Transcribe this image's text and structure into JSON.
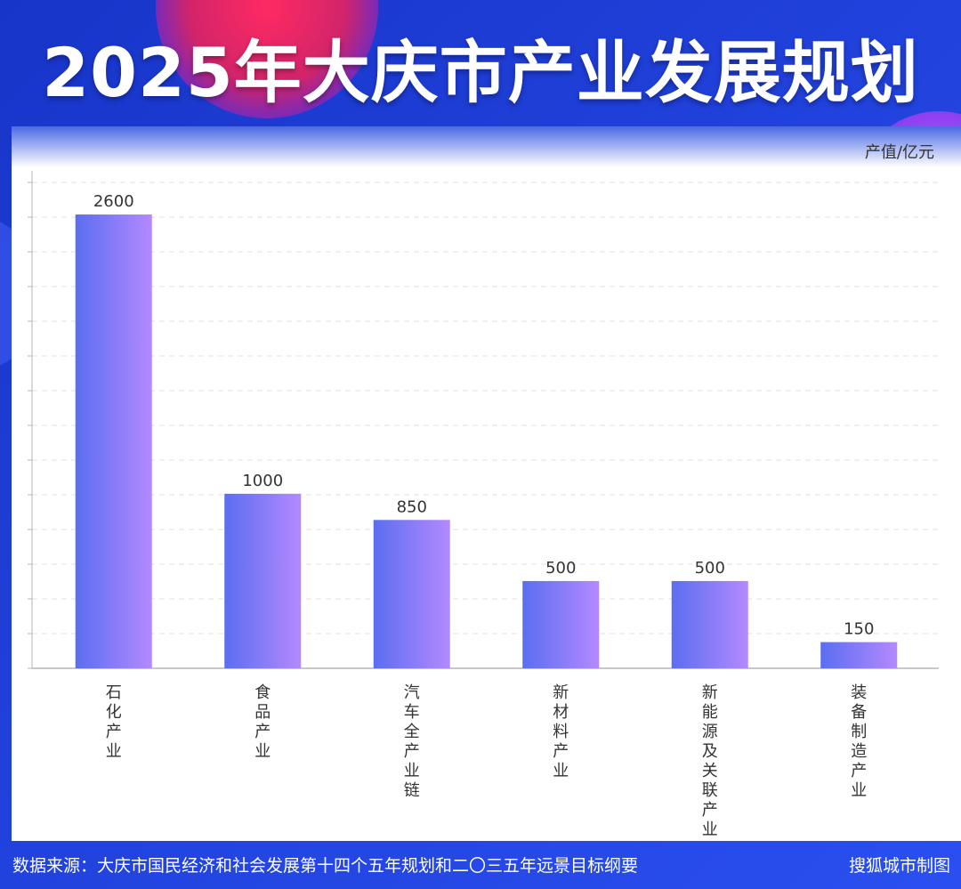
{
  "title": "2025年大庆市产业发展规划",
  "unit_label": "产值/亿元",
  "source_text": "数据来源：大庆市国民经济和社会发展第十四个五年规划和二〇三五年远景目标纲要",
  "credit_text": "搜狐城市制图",
  "colors": {
    "background": "#1f3fd6",
    "bar_start": "#5a6ef0",
    "bar_end": "#b489ff",
    "accent_pink": "#e8285f",
    "grid": "#e2e2e2"
  },
  "chart_data": {
    "type": "bar",
    "categories": [
      "石化产业",
      "食品产业",
      "汽车全产业链",
      "新材料产业",
      "新能源及关联产业",
      "装备制造产业"
    ],
    "values": [
      2600,
      1000,
      850,
      500,
      500,
      150
    ],
    "ylim": [
      0,
      2850
    ],
    "grid": true,
    "ylabel": "产值/亿元"
  }
}
